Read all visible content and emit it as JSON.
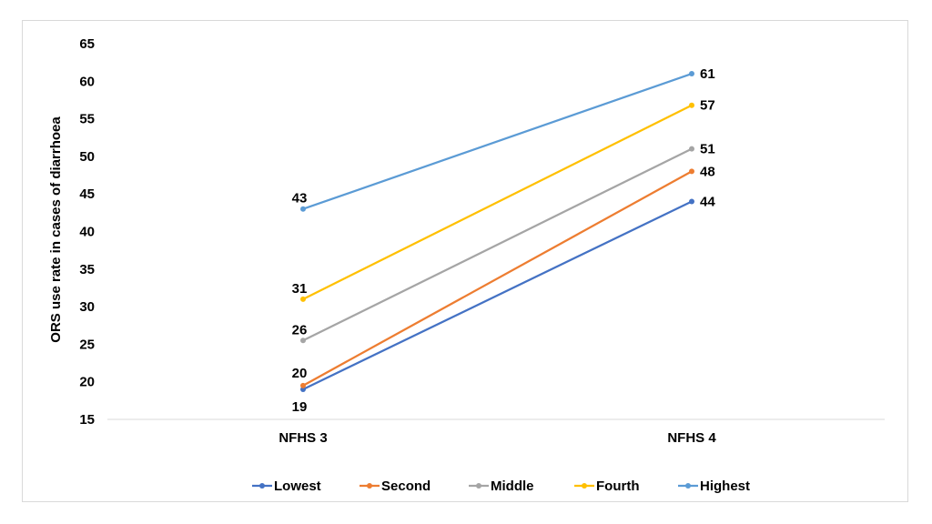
{
  "chart_data": {
    "type": "line",
    "title": "",
    "xlabel": "",
    "ylabel": "ORS use rate in cases of diarrhoea",
    "categories": [
      "NFHS 3",
      "NFHS 4"
    ],
    "ylim": [
      15,
      65
    ],
    "yticks": [
      15,
      20,
      25,
      30,
      35,
      40,
      45,
      50,
      55,
      60,
      65
    ],
    "grid": false,
    "legend": "bottom",
    "series": [
      {
        "name": "Lowest",
        "values": [
          19,
          44
        ],
        "labels": [
          "19",
          "44"
        ],
        "color": "#4472c4"
      },
      {
        "name": "Second",
        "values": [
          19.5,
          48
        ],
        "labels": [
          "20",
          "48"
        ],
        "color": "#ed7d31"
      },
      {
        "name": "Middle",
        "values": [
          25.5,
          51
        ],
        "labels": [
          "26",
          "51"
        ],
        "color": "#a5a5a5"
      },
      {
        "name": "Fourth",
        "values": [
          31,
          56.8
        ],
        "labels": [
          "31",
          "57"
        ],
        "color": "#ffc000"
      },
      {
        "name": "Highest",
        "values": [
          43,
          61
        ],
        "labels": [
          "43",
          "61"
        ],
        "color": "#5b9bd5"
      }
    ]
  }
}
